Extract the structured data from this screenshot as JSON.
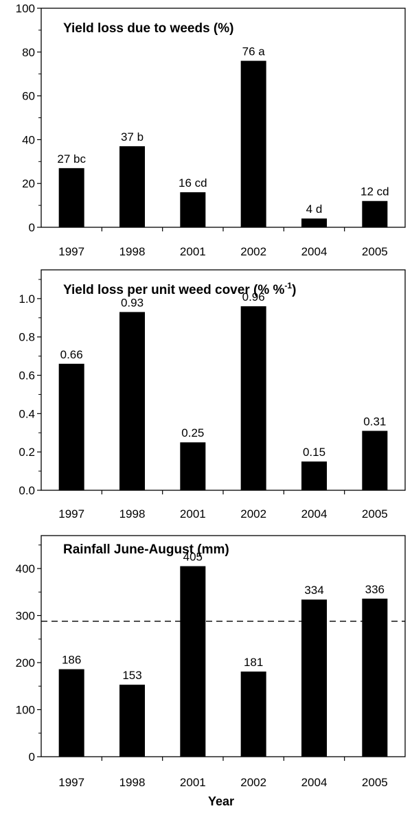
{
  "chart_data": [
    {
      "type": "bar",
      "title": "Yield loss due to weeds (%)",
      "categories": [
        "1997",
        "1998",
        "2001",
        "2002",
        "2004",
        "2005"
      ],
      "values": [
        27,
        37,
        16,
        76,
        4,
        12
      ],
      "data_labels": [
        "27 bc",
        "37 b",
        "16 cd",
        "76 a",
        "4 d",
        "12 cd"
      ],
      "yticks": [
        "0",
        "20",
        "40",
        "60",
        "80",
        "100"
      ],
      "ylim": [
        0,
        100
      ],
      "xlabel": "",
      "ylabel": "",
      "bar_color": "#000000"
    },
    {
      "type": "bar",
      "title": "Yield loss per unit weed cover (% %",
      "title_superscript": "-1",
      "title_suffix": ")",
      "categories": [
        "1997",
        "1998",
        "2001",
        "2002",
        "2004",
        "2005"
      ],
      "values": [
        0.66,
        0.93,
        0.25,
        0.96,
        0.15,
        0.31
      ],
      "data_labels": [
        "0.66",
        "0.93",
        "0.25",
        "0.96",
        "0.15",
        "0.31"
      ],
      "yticks": [
        "0.0",
        "0.2",
        "0.4",
        "0.6",
        "0.8",
        "1.0"
      ],
      "ylim": [
        0,
        1.15
      ],
      "xlabel": "",
      "ylabel": "",
      "bar_color": "#000000"
    },
    {
      "type": "bar",
      "title": "Rainfall June-August (mm)",
      "categories": [
        "1997",
        "1998",
        "2001",
        "2002",
        "2004",
        "2005"
      ],
      "values": [
        186,
        153,
        405,
        181,
        334,
        336
      ],
      "data_labels": [
        "186",
        "153",
        "405",
        "181",
        "334",
        "336"
      ],
      "yticks": [
        "0",
        "100",
        "200",
        "300",
        "400"
      ],
      "ylim": [
        0,
        470
      ],
      "reference_line": 288,
      "xlabel": "Year",
      "ylabel": "",
      "bar_color": "#000000"
    }
  ]
}
